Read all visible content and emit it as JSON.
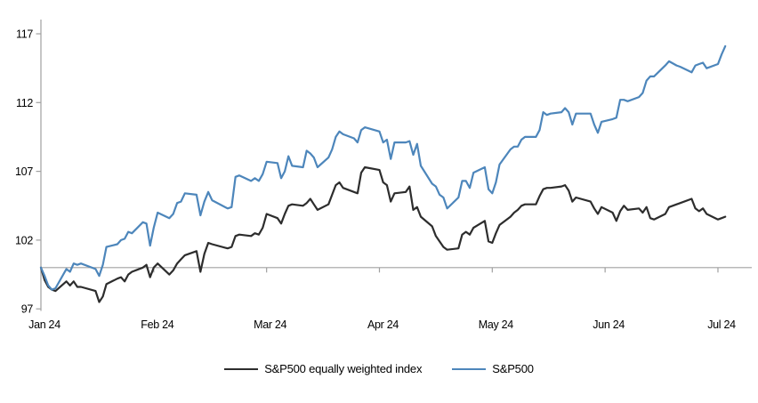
{
  "chart_data": {
    "type": "line",
    "title": "",
    "xlabel": "",
    "ylabel": "",
    "x_axis": {
      "labels": [
        "Jan 24",
        "Feb 24",
        "Mar 24",
        "Apr 24",
        "May 24",
        "Jun 24",
        "Jul 24"
      ]
    },
    "y_axis": {
      "ticks": [
        97,
        102,
        107,
        112,
        117
      ],
      "range": [
        97,
        117
      ]
    },
    "baseline_value": 100,
    "grid": false,
    "legend_position": "bottom",
    "axis_color": "#a0a0a0",
    "baseline_color": "#a0a0a0",
    "series": [
      {
        "name": "S&P500 equally weighted index",
        "color": "#2d2d2d",
        "data": [
          [
            "2023-12-29",
            100.0
          ],
          [
            "2024-01-02",
            99.1
          ],
          [
            "2024-01-03",
            98.6
          ],
          [
            "2024-01-04",
            98.4
          ],
          [
            "2024-01-05",
            98.3
          ],
          [
            "2024-01-08",
            99.0
          ],
          [
            "2024-01-09",
            98.7
          ],
          [
            "2024-01-10",
            99.0
          ],
          [
            "2024-01-11",
            98.6
          ],
          [
            "2024-01-12",
            98.6
          ],
          [
            "2024-01-16",
            98.3
          ],
          [
            "2024-01-17",
            97.5
          ],
          [
            "2024-01-18",
            97.9
          ],
          [
            "2024-01-19",
            98.8
          ],
          [
            "2024-01-22",
            99.2
          ],
          [
            "2024-01-23",
            99.3
          ],
          [
            "2024-01-24",
            99.0
          ],
          [
            "2024-01-25",
            99.5
          ],
          [
            "2024-01-26",
            99.7
          ],
          [
            "2024-01-29",
            100.0
          ],
          [
            "2024-01-30",
            100.2
          ],
          [
            "2024-01-31",
            99.3
          ],
          [
            "2024-02-01",
            100.0
          ],
          [
            "2024-02-02",
            100.3
          ],
          [
            "2024-02-05",
            99.5
          ],
          [
            "2024-02-06",
            99.8
          ],
          [
            "2024-02-07",
            100.3
          ],
          [
            "2024-02-08",
            100.6
          ],
          [
            "2024-02-09",
            100.9
          ],
          [
            "2024-02-12",
            101.2
          ],
          [
            "2024-02-13",
            99.7
          ],
          [
            "2024-02-14",
            101.0
          ],
          [
            "2024-02-15",
            101.8
          ],
          [
            "2024-02-16",
            101.7
          ],
          [
            "2024-02-20",
            101.4
          ],
          [
            "2024-02-21",
            101.5
          ],
          [
            "2024-02-22",
            102.3
          ],
          [
            "2024-02-23",
            102.4
          ],
          [
            "2024-02-26",
            102.3
          ],
          [
            "2024-02-27",
            102.5
          ],
          [
            "2024-02-28",
            102.4
          ],
          [
            "2024-02-29",
            102.9
          ],
          [
            "2024-03-01",
            103.9
          ],
          [
            "2024-03-04",
            103.6
          ],
          [
            "2024-03-05",
            103.2
          ],
          [
            "2024-03-06",
            103.9
          ],
          [
            "2024-03-07",
            104.5
          ],
          [
            "2024-03-08",
            104.6
          ],
          [
            "2024-03-11",
            104.5
          ],
          [
            "2024-03-12",
            104.7
          ],
          [
            "2024-03-13",
            105.0
          ],
          [
            "2024-03-14",
            104.6
          ],
          [
            "2024-03-15",
            104.2
          ],
          [
            "2024-03-18",
            104.6
          ],
          [
            "2024-03-19",
            105.3
          ],
          [
            "2024-03-20",
            106.0
          ],
          [
            "2024-03-21",
            106.2
          ],
          [
            "2024-03-22",
            105.8
          ],
          [
            "2024-03-25",
            105.5
          ],
          [
            "2024-03-26",
            105.4
          ],
          [
            "2024-03-27",
            106.9
          ],
          [
            "2024-03-28",
            107.3
          ],
          [
            "2024-04-01",
            107.1
          ],
          [
            "2024-04-02",
            106.2
          ],
          [
            "2024-04-03",
            106.0
          ],
          [
            "2024-04-04",
            104.8
          ],
          [
            "2024-04-05",
            105.4
          ],
          [
            "2024-04-08",
            105.5
          ],
          [
            "2024-04-09",
            105.9
          ],
          [
            "2024-04-10",
            104.2
          ],
          [
            "2024-04-11",
            104.4
          ],
          [
            "2024-04-12",
            103.7
          ],
          [
            "2024-04-15",
            103.0
          ],
          [
            "2024-04-16",
            102.3
          ],
          [
            "2024-04-17",
            101.9
          ],
          [
            "2024-04-18",
            101.5
          ],
          [
            "2024-04-19",
            101.3
          ],
          [
            "2024-04-22",
            101.4
          ],
          [
            "2024-04-23",
            102.4
          ],
          [
            "2024-04-24",
            102.6
          ],
          [
            "2024-04-25",
            102.4
          ],
          [
            "2024-04-26",
            102.9
          ],
          [
            "2024-04-29",
            103.4
          ],
          [
            "2024-04-30",
            101.9
          ],
          [
            "2024-05-01",
            101.8
          ],
          [
            "2024-05-02",
            102.5
          ],
          [
            "2024-05-03",
            103.1
          ],
          [
            "2024-05-06",
            103.7
          ],
          [
            "2024-05-07",
            104.0
          ],
          [
            "2024-05-08",
            104.2
          ],
          [
            "2024-05-09",
            104.5
          ],
          [
            "2024-05-10",
            104.6
          ],
          [
            "2024-05-13",
            104.6
          ],
          [
            "2024-05-14",
            105.2
          ],
          [
            "2024-05-15",
            105.7
          ],
          [
            "2024-05-16",
            105.8
          ],
          [
            "2024-05-17",
            105.8
          ],
          [
            "2024-05-20",
            105.9
          ],
          [
            "2024-05-21",
            106.0
          ],
          [
            "2024-05-22",
            105.6
          ],
          [
            "2024-05-23",
            104.8
          ],
          [
            "2024-05-24",
            105.1
          ],
          [
            "2024-05-28",
            104.8
          ],
          [
            "2024-05-29",
            104.3
          ],
          [
            "2024-05-30",
            103.9
          ],
          [
            "2024-05-31",
            104.4
          ],
          [
            "2024-06-03",
            104.0
          ],
          [
            "2024-06-04",
            103.4
          ],
          [
            "2024-06-05",
            104.1
          ],
          [
            "2024-06-06",
            104.5
          ],
          [
            "2024-06-07",
            104.2
          ],
          [
            "2024-06-10",
            104.3
          ],
          [
            "2024-06-11",
            104.0
          ],
          [
            "2024-06-12",
            104.4
          ],
          [
            "2024-06-13",
            103.6
          ],
          [
            "2024-06-14",
            103.5
          ],
          [
            "2024-06-17",
            103.9
          ],
          [
            "2024-06-18",
            104.4
          ],
          [
            "2024-06-20",
            104.6
          ],
          [
            "2024-06-21",
            104.7
          ],
          [
            "2024-06-24",
            105.0
          ],
          [
            "2024-06-25",
            104.3
          ],
          [
            "2024-06-26",
            104.1
          ],
          [
            "2024-06-27",
            104.3
          ],
          [
            "2024-06-28",
            103.9
          ],
          [
            "2024-07-01",
            103.5
          ],
          [
            "2024-07-02",
            103.6
          ],
          [
            "2024-07-03",
            103.7
          ]
        ]
      },
      {
        "name": "S&P500",
        "color": "#4d86bb",
        "data": [
          [
            "2023-12-29",
            100.0
          ],
          [
            "2024-01-02",
            99.4
          ],
          [
            "2024-01-03",
            98.7
          ],
          [
            "2024-01-04",
            98.4
          ],
          [
            "2024-01-05",
            98.5
          ],
          [
            "2024-01-08",
            99.9
          ],
          [
            "2024-01-09",
            99.7
          ],
          [
            "2024-01-10",
            100.3
          ],
          [
            "2024-01-11",
            100.2
          ],
          [
            "2024-01-12",
            100.3
          ],
          [
            "2024-01-16",
            99.9
          ],
          [
            "2024-01-17",
            99.4
          ],
          [
            "2024-01-18",
            100.2
          ],
          [
            "2024-01-19",
            101.5
          ],
          [
            "2024-01-22",
            101.7
          ],
          [
            "2024-01-23",
            102.0
          ],
          [
            "2024-01-24",
            102.1
          ],
          [
            "2024-01-25",
            102.6
          ],
          [
            "2024-01-26",
            102.5
          ],
          [
            "2024-01-29",
            103.3
          ],
          [
            "2024-01-30",
            103.2
          ],
          [
            "2024-01-31",
            101.6
          ],
          [
            "2024-02-01",
            102.9
          ],
          [
            "2024-02-02",
            104.0
          ],
          [
            "2024-02-05",
            103.6
          ],
          [
            "2024-02-06",
            103.9
          ],
          [
            "2024-02-07",
            104.7
          ],
          [
            "2024-02-08",
            104.8
          ],
          [
            "2024-02-09",
            105.4
          ],
          [
            "2024-02-12",
            105.3
          ],
          [
            "2024-02-13",
            103.8
          ],
          [
            "2024-02-14",
            104.8
          ],
          [
            "2024-02-15",
            105.5
          ],
          [
            "2024-02-16",
            104.9
          ],
          [
            "2024-02-20",
            104.3
          ],
          [
            "2024-02-21",
            104.4
          ],
          [
            "2024-02-22",
            106.6
          ],
          [
            "2024-02-23",
            106.7
          ],
          [
            "2024-02-26",
            106.3
          ],
          [
            "2024-02-27",
            106.5
          ],
          [
            "2024-02-28",
            106.3
          ],
          [
            "2024-02-29",
            106.8
          ],
          [
            "2024-03-01",
            107.7
          ],
          [
            "2024-03-04",
            107.6
          ],
          [
            "2024-03-05",
            106.5
          ],
          [
            "2024-03-06",
            107.0
          ],
          [
            "2024-03-07",
            108.1
          ],
          [
            "2024-03-08",
            107.4
          ],
          [
            "2024-03-11",
            107.3
          ],
          [
            "2024-03-12",
            108.5
          ],
          [
            "2024-03-13",
            108.3
          ],
          [
            "2024-03-14",
            108.0
          ],
          [
            "2024-03-15",
            107.3
          ],
          [
            "2024-03-18",
            108.0
          ],
          [
            "2024-03-19",
            108.6
          ],
          [
            "2024-03-20",
            109.5
          ],
          [
            "2024-03-21",
            109.9
          ],
          [
            "2024-03-22",
            109.7
          ],
          [
            "2024-03-25",
            109.4
          ],
          [
            "2024-03-26",
            109.1
          ],
          [
            "2024-03-27",
            110.0
          ],
          [
            "2024-03-28",
            110.2
          ],
          [
            "2024-04-01",
            109.9
          ],
          [
            "2024-04-02",
            109.1
          ],
          [
            "2024-04-03",
            109.3
          ],
          [
            "2024-04-04",
            107.9
          ],
          [
            "2024-04-05",
            109.1
          ],
          [
            "2024-04-08",
            109.1
          ],
          [
            "2024-04-09",
            109.2
          ],
          [
            "2024-04-10",
            108.2
          ],
          [
            "2024-04-11",
            109.0
          ],
          [
            "2024-04-12",
            107.4
          ],
          [
            "2024-04-15",
            106.1
          ],
          [
            "2024-04-16",
            105.9
          ],
          [
            "2024-04-17",
            105.3
          ],
          [
            "2024-04-18",
            105.1
          ],
          [
            "2024-04-19",
            104.3
          ],
          [
            "2024-04-22",
            105.1
          ],
          [
            "2024-04-23",
            106.3
          ],
          [
            "2024-04-24",
            106.3
          ],
          [
            "2024-04-25",
            105.8
          ],
          [
            "2024-04-26",
            106.9
          ],
          [
            "2024-04-29",
            107.3
          ],
          [
            "2024-04-30",
            105.7
          ],
          [
            "2024-05-01",
            105.4
          ],
          [
            "2024-05-02",
            106.2
          ],
          [
            "2024-05-03",
            107.5
          ],
          [
            "2024-05-06",
            108.6
          ],
          [
            "2024-05-07",
            108.8
          ],
          [
            "2024-05-08",
            108.8
          ],
          [
            "2024-05-09",
            109.3
          ],
          [
            "2024-05-10",
            109.5
          ],
          [
            "2024-05-13",
            109.5
          ],
          [
            "2024-05-14",
            110.0
          ],
          [
            "2024-05-15",
            111.3
          ],
          [
            "2024-05-16",
            111.1
          ],
          [
            "2024-05-17",
            111.2
          ],
          [
            "2024-05-20",
            111.3
          ],
          [
            "2024-05-21",
            111.6
          ],
          [
            "2024-05-22",
            111.3
          ],
          [
            "2024-05-23",
            110.4
          ],
          [
            "2024-05-24",
            111.2
          ],
          [
            "2024-05-28",
            111.2
          ],
          [
            "2024-05-29",
            110.4
          ],
          [
            "2024-05-30",
            109.8
          ],
          [
            "2024-05-31",
            110.6
          ],
          [
            "2024-06-03",
            110.8
          ],
          [
            "2024-06-04",
            110.9
          ],
          [
            "2024-06-05",
            112.2
          ],
          [
            "2024-06-06",
            112.2
          ],
          [
            "2024-06-07",
            112.1
          ],
          [
            "2024-06-10",
            112.4
          ],
          [
            "2024-06-11",
            112.7
          ],
          [
            "2024-06-12",
            113.6
          ],
          [
            "2024-06-13",
            113.9
          ],
          [
            "2024-06-14",
            113.9
          ],
          [
            "2024-06-17",
            114.7
          ],
          [
            "2024-06-18",
            115.0
          ],
          [
            "2024-06-20",
            114.7
          ],
          [
            "2024-06-21",
            114.6
          ],
          [
            "2024-06-24",
            114.2
          ],
          [
            "2024-06-25",
            114.7
          ],
          [
            "2024-06-26",
            114.8
          ],
          [
            "2024-06-27",
            114.9
          ],
          [
            "2024-06-28",
            114.5
          ],
          [
            "2024-07-01",
            114.8
          ],
          [
            "2024-07-02",
            115.5
          ],
          [
            "2024-07-03",
            116.1
          ]
        ]
      }
    ]
  }
}
